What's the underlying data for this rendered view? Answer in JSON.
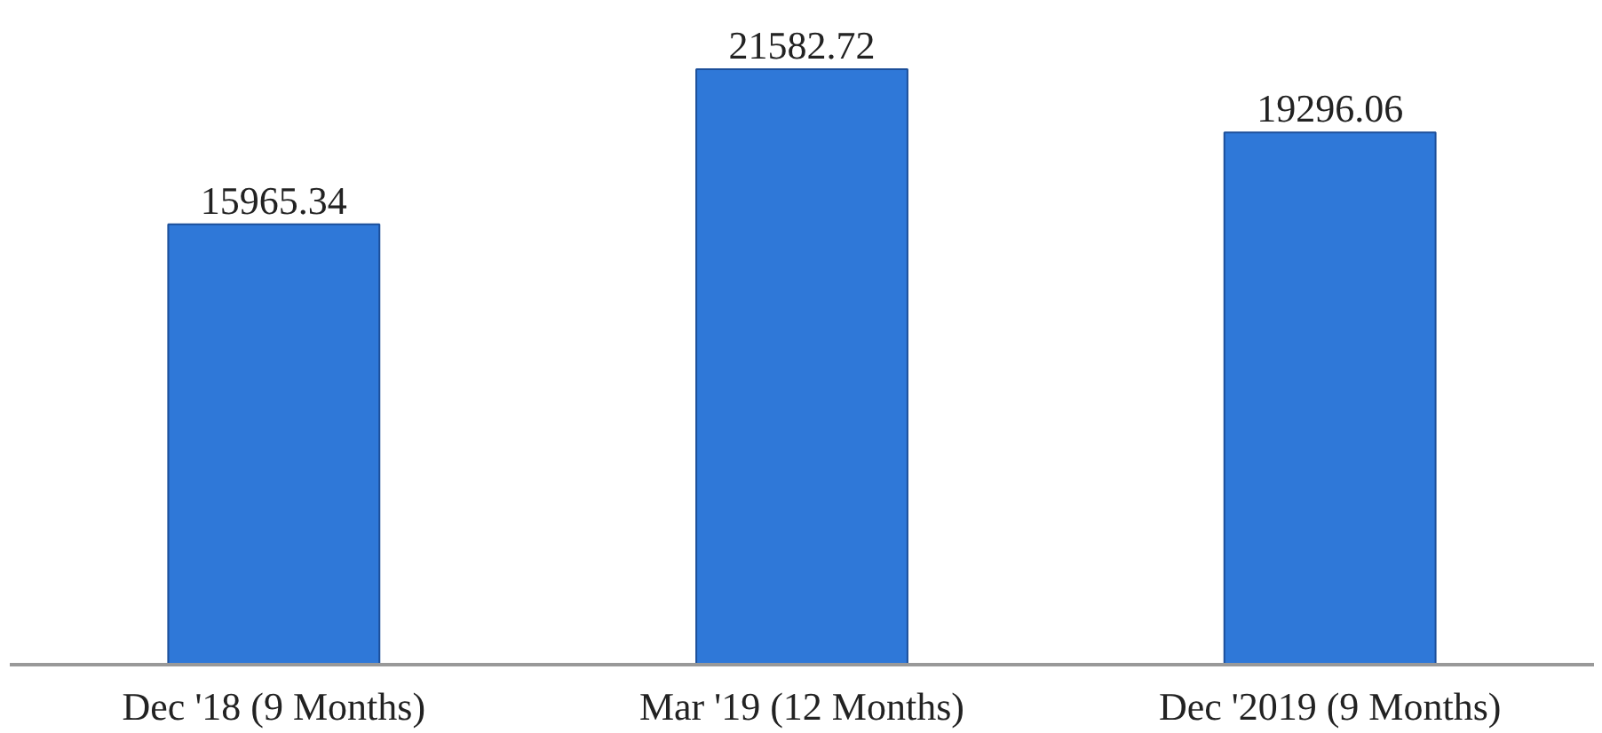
{
  "chart_data": {
    "type": "bar",
    "categories": [
      "Dec '18 (9 Months)",
      "Mar '19 (12 Months)",
      "Dec '2019 (9 Months)"
    ],
    "values": [
      15965.34,
      21582.72,
      19296.06
    ],
    "color": "#2f78d8",
    "data_labels": true,
    "grid": false
  }
}
